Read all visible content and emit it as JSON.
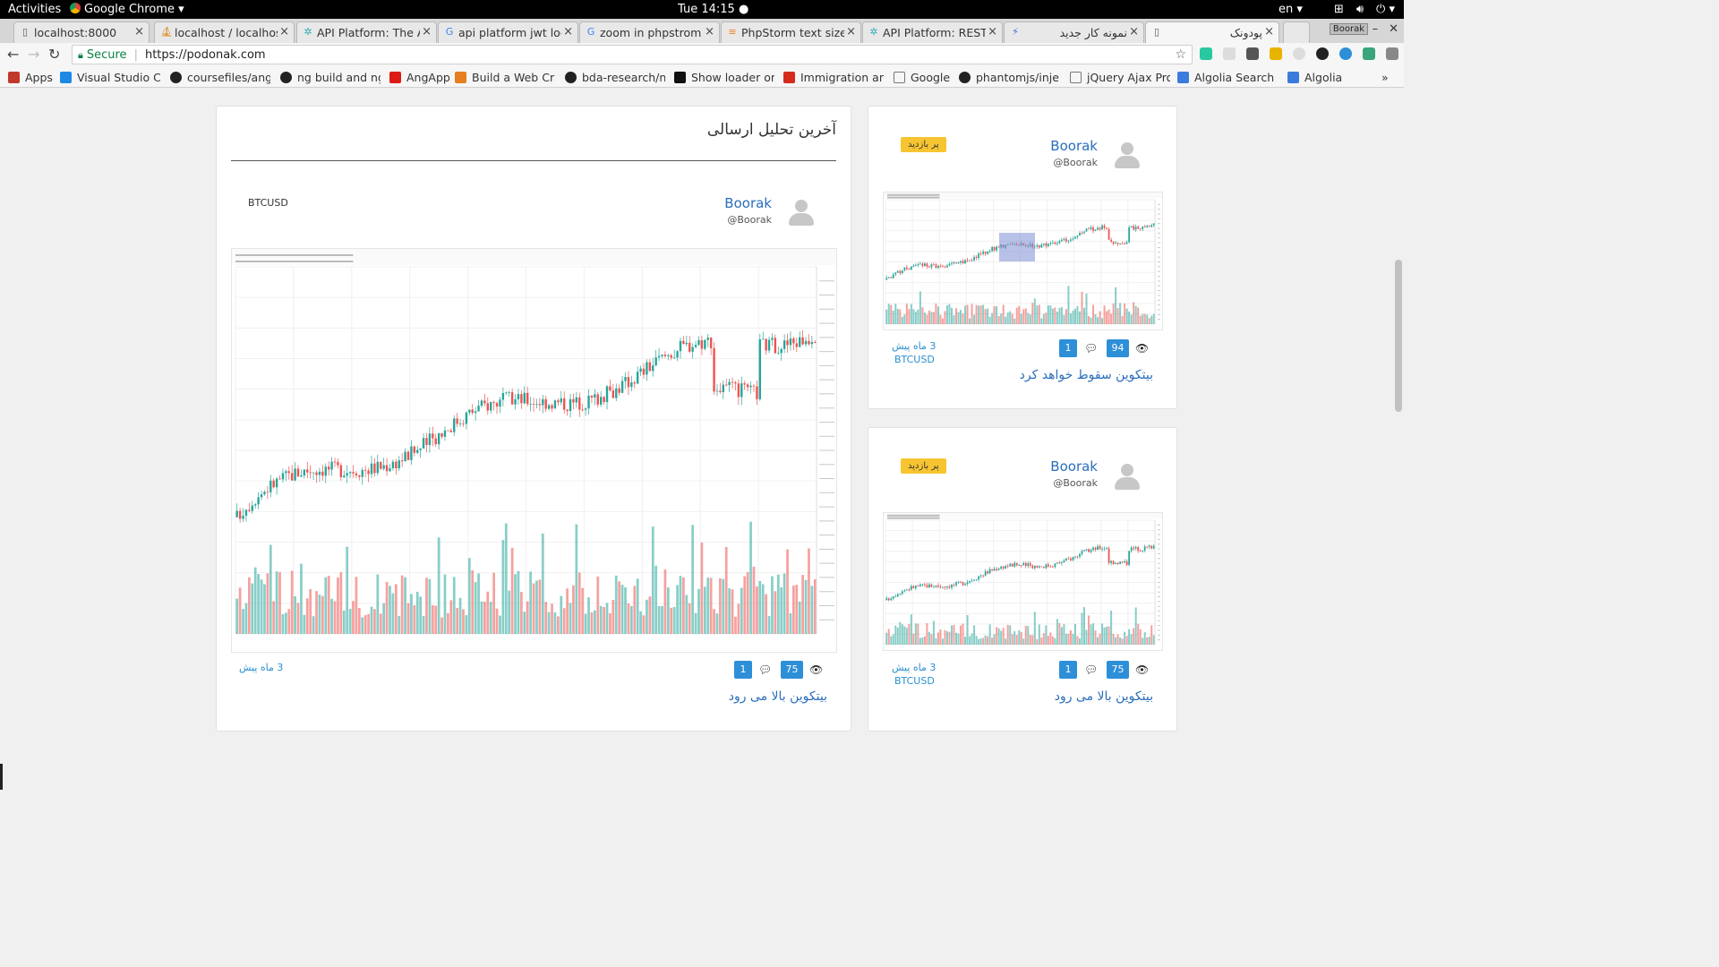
{
  "os_bar": {
    "activities": "Activities",
    "app_name": "Google Chrome",
    "clock": "Tue 14:15",
    "language": "en"
  },
  "tabs": [
    {
      "label": "localhost:8000",
      "favicon": "doc-icon"
    },
    {
      "label": "localhost / localhost",
      "favicon": "pma-icon"
    },
    {
      "label": "API Platform: The API",
      "favicon": "spider-icon"
    },
    {
      "label": "api platform jwt login",
      "favicon": "google-icon"
    },
    {
      "label": "zoom in phpstrom -",
      "favicon": "google-icon"
    },
    {
      "label": "PhpStorm text size -",
      "favicon": "so-icon"
    },
    {
      "label": "API Platform: REST a",
      "favicon": "spider-icon"
    },
    {
      "label": "نمونه کار جدید",
      "favicon": "app-icon"
    },
    {
      "label": "پودونک",
      "favicon": "doc-icon"
    }
  ],
  "window": {
    "profile": "Boorak"
  },
  "address_bar": {
    "security_label": "Secure",
    "url": "https://podonak.com"
  },
  "bookmarks": [
    {
      "label": "Apps",
      "icon": "apps-grid-icon"
    },
    {
      "label": "Visual Studio Co",
      "icon": "vscode-icon"
    },
    {
      "label": "coursefiles/angu",
      "icon": "github-icon"
    },
    {
      "label": "ng build and ng s",
      "icon": "github-icon"
    },
    {
      "label": "AngApp",
      "icon": "angular-icon"
    },
    {
      "label": "Build a Web Crav",
      "icon": "shield-icon"
    },
    {
      "label": "bda-research/no",
      "icon": "github-icon"
    },
    {
      "label": "Show loader on",
      "icon": "medium-icon"
    },
    {
      "label": "Immigration and",
      "icon": "maple-leaf-icon"
    },
    {
      "label": "Google",
      "icon": "doc-icon"
    },
    {
      "label": "phantomjs/inject",
      "icon": "github-icon"
    },
    {
      "label": "jQuery Ajax Prog",
      "icon": "doc-icon"
    },
    {
      "label": "Algolia Search a",
      "icon": "algolia-icon"
    },
    {
      "label": "Algolia",
      "icon": "algolia-icon"
    }
  ],
  "main": {
    "section_title": "آخرین تحلیل ارسالی",
    "post": {
      "author": "Boorak",
      "handle": "@Boorak",
      "symbol": "BTCUSD",
      "time_ago": "3 ماه پیش",
      "comments": "1",
      "views": "75",
      "title": "بیتکوین بالا می رود"
    }
  },
  "sidebar": {
    "posts": [
      {
        "badge": "پر بازدید",
        "author": "Boorak",
        "handle": "@Boorak",
        "time_ago": "3 ماه پیش",
        "symbol": "BTCUSD",
        "comments": "1",
        "views": "94",
        "title": "بیتکوین سقوط خواهد کرد"
      },
      {
        "badge": "پر بازدید",
        "author": "Boorak",
        "handle": "@Boorak",
        "time_ago": "3 ماه پیش",
        "symbol": "BTCUSD",
        "comments": "1",
        "views": "75",
        "title": "بیتکوین بالا می رود"
      }
    ]
  },
  "colors": {
    "accent_blue": "#2d8fd8",
    "link_blue": "#2a6ebb",
    "badge_yellow": "#f7c531",
    "candle_up": "#26a69a",
    "candle_down": "#ef5350"
  }
}
